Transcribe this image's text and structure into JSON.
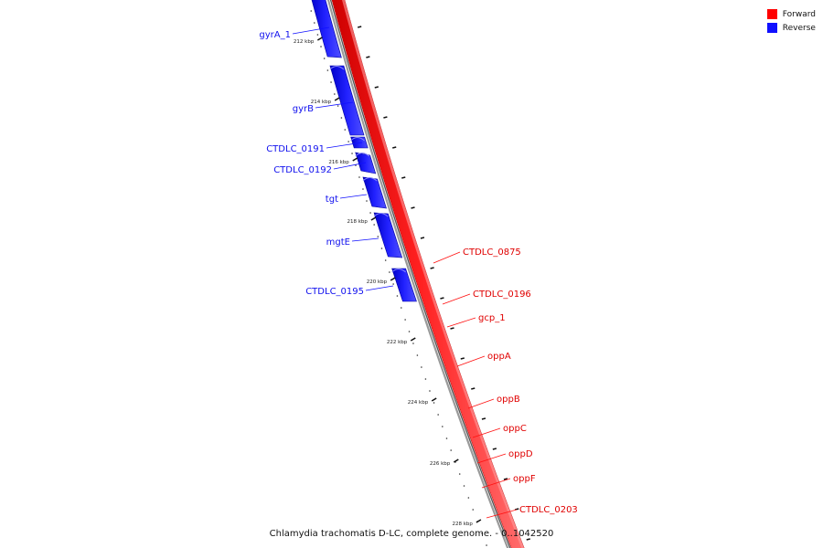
{
  "legend": [
    {
      "label": "Forward",
      "color": "#ff0000"
    },
    {
      "label": "Reverse",
      "color": "#1010ff"
    }
  ],
  "caption": "Chlamydia trachomatis D-LC, complete genome. - 0..1042520",
  "colors": {
    "forward": "#ff0000",
    "reverse": "#1010ff",
    "backbone": "#888888"
  },
  "ticks": [
    "212 kbp",
    "214 kbp",
    "216 kbp",
    "218 kbp",
    "220 kbp",
    "222 kbp",
    "224 kbp",
    "226 kbp",
    "228 kbp"
  ],
  "reverse_genes": [
    "gyrA_1",
    "gyrB",
    "CTDLC_0191",
    "CTDLC_0192",
    "tgt",
    "mgtE",
    "CTDLC_0195"
  ],
  "forward_genes": [
    "CTDLC_0875",
    "CTDLC_0196",
    "gcp_1",
    "oppA",
    "oppB",
    "oppC",
    "oppD",
    "oppF",
    "CTDLC_0203"
  ]
}
